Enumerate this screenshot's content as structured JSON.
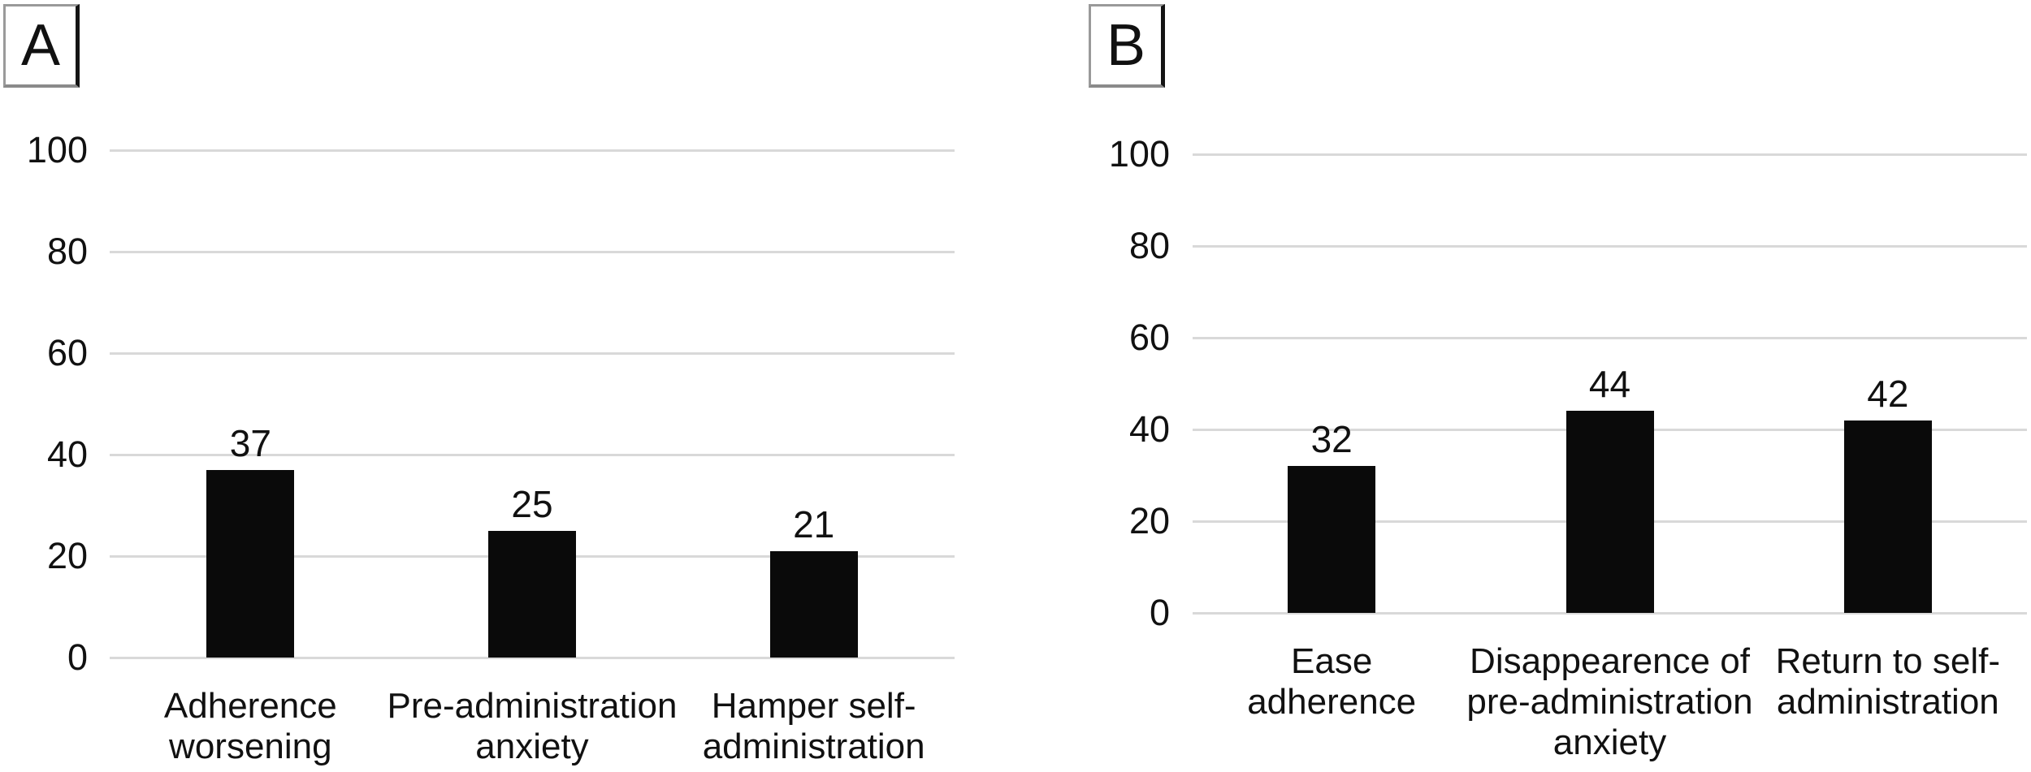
{
  "figure": {
    "background": "#ffffff",
    "text_color": "#111111"
  },
  "chart_data": [
    {
      "type": "bar",
      "panel_label": "A",
      "categories": [
        "Adherence\nworsening",
        "Pre-administration\nanxiety",
        "Hamper self-\nadministration"
      ],
      "values": [
        37,
        25,
        21
      ],
      "yticks": [
        0,
        20,
        40,
        60,
        80,
        100
      ],
      "ylim": [
        0,
        100
      ],
      "grid": true,
      "legend": "none",
      "bar_color": "#0a0a0a",
      "gridline_color": "#d9d9d9"
    },
    {
      "type": "bar",
      "panel_label": "B",
      "categories": [
        "Ease\nadherence",
        "Disappearence of\npre-administration\nanxiety",
        "Return to self-\nadministration"
      ],
      "values": [
        32,
        44,
        42
      ],
      "yticks": [
        0,
        20,
        40,
        60,
        80,
        100
      ],
      "ylim": [
        0,
        100
      ],
      "grid": true,
      "legend": "none",
      "bar_color": "#0a0a0a",
      "gridline_color": "#d9d9d9"
    }
  ]
}
